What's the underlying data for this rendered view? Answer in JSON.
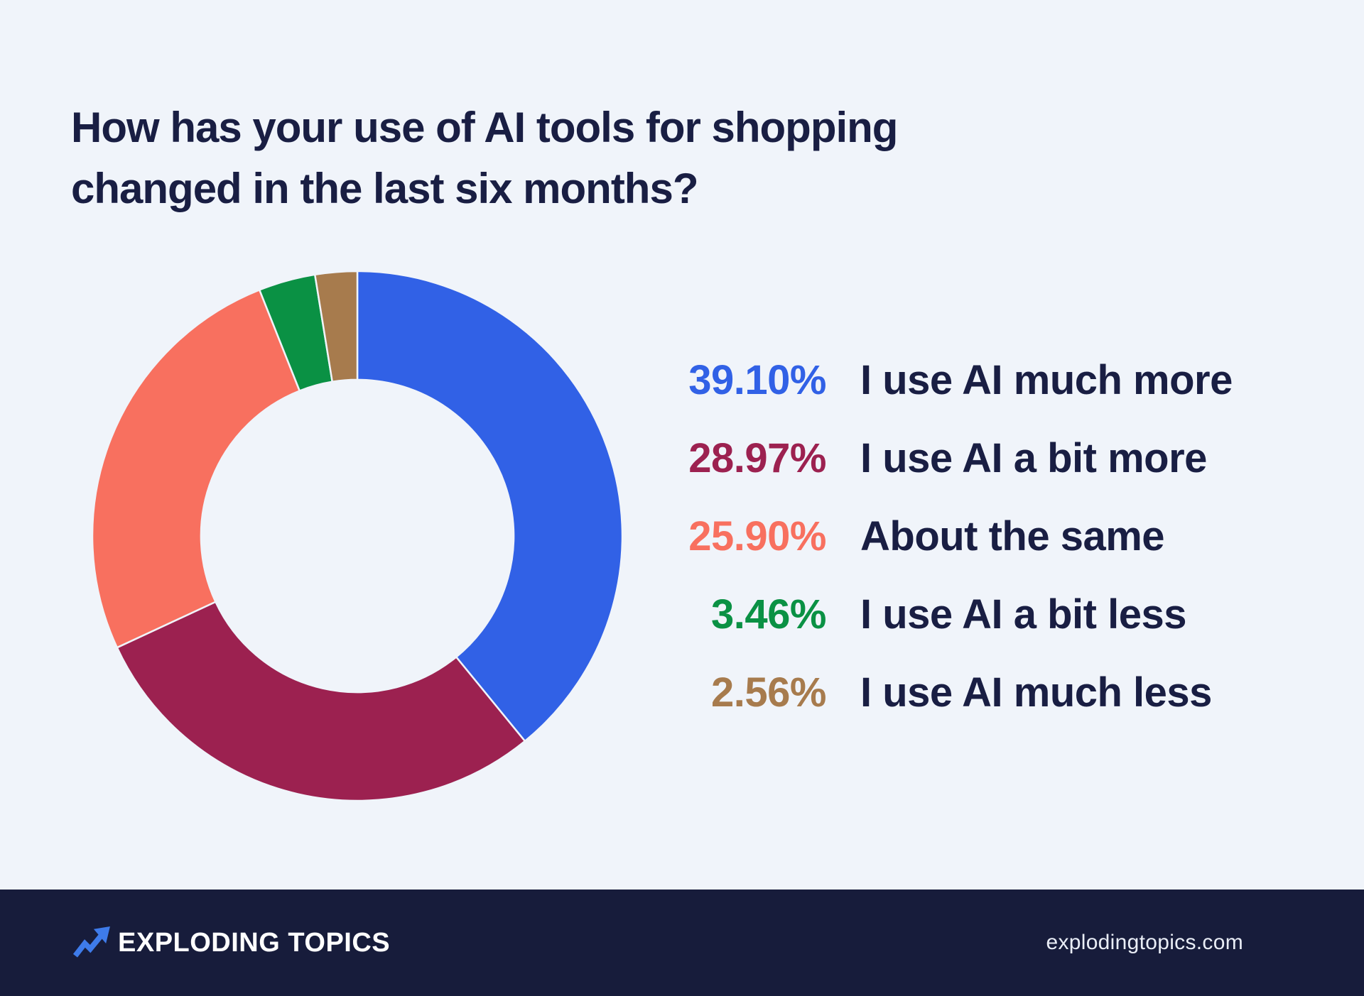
{
  "page": {
    "background": "#F0F4FA"
  },
  "title": {
    "line1": "How has your use of AI tools for shopping",
    "line2": "changed in the last six months?",
    "color": "#191E43"
  },
  "chart_data": {
    "type": "pie",
    "variant": "donut",
    "title": "How has your use of AI tools for shopping changed in the last six months?",
    "categories": [
      "I use AI much more",
      "I use AI a bit more",
      "About the same",
      "I use AI a bit less",
      "I use AI much less"
    ],
    "values": [
      39.1,
      28.97,
      25.9,
      3.46,
      2.56
    ],
    "value_labels": [
      "39.10%",
      "28.97%",
      "25.90%",
      "3.46%",
      "2.56%"
    ],
    "colors": [
      "#3161E6",
      "#9C2150",
      "#F8705F",
      "#0A9144",
      "#A77B4D"
    ],
    "start_angle": "top",
    "direction": "clockwise",
    "inner_radius_ratio": 0.59,
    "slice_gap_color": "#F0F4FA",
    "legend_position": "right",
    "text_color": "#191E43"
  },
  "footer": {
    "background": "#171C3B",
    "brand": "EXPLODING TOPICS",
    "website": "explodingtopics.com",
    "logo_icon": "trending-up-arrow",
    "logo_color": "#3E7BEA",
    "text_color": "#FFFFFF"
  }
}
